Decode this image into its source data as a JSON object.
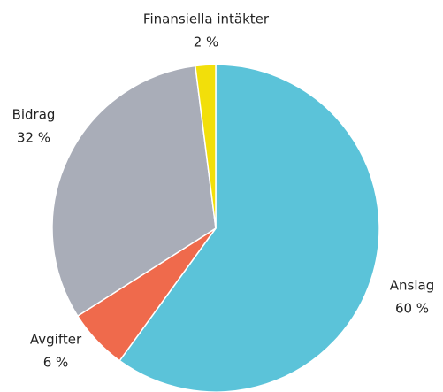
{
  "chart_data": {
    "type": "pie",
    "categories": [
      "Anslag",
      "Avgifter",
      "Bidrag",
      "Finansiella intäkter"
    ],
    "values": [
      60,
      6,
      32,
      2
    ],
    "value_labels": [
      "60 %",
      "6 %",
      "32 %",
      "2 %"
    ],
    "colors": [
      "#5bc3d9",
      "#ef6a4c",
      "#a9adb8",
      "#f2df0a"
    ]
  }
}
